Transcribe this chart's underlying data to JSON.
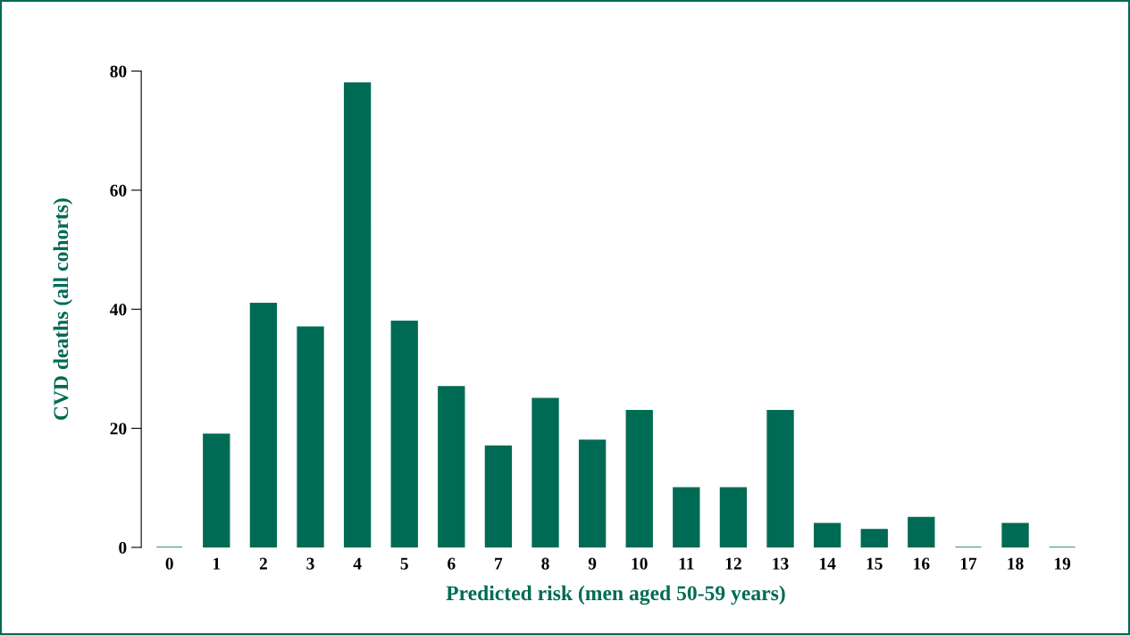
{
  "chart_data": {
    "type": "bar",
    "xlabel": "Predicted risk (men aged 50-59 years)",
    "ylabel": "CVD deaths (all cohorts)",
    "categories": [
      "0",
      "1",
      "2",
      "3",
      "4",
      "5",
      "6",
      "7",
      "8",
      "9",
      "10",
      "11",
      "12",
      "13",
      "14",
      "15",
      "16",
      "17",
      "18",
      "19"
    ],
    "values": [
      0,
      19,
      41,
      37,
      78,
      38,
      27,
      17,
      25,
      18,
      23,
      10,
      10,
      23,
      4,
      3,
      5,
      0,
      4,
      0
    ],
    "color": "#006b54",
    "ylim": [
      0,
      80
    ],
    "yticks": [
      0,
      20,
      40,
      60,
      80
    ],
    "grid": false
  }
}
